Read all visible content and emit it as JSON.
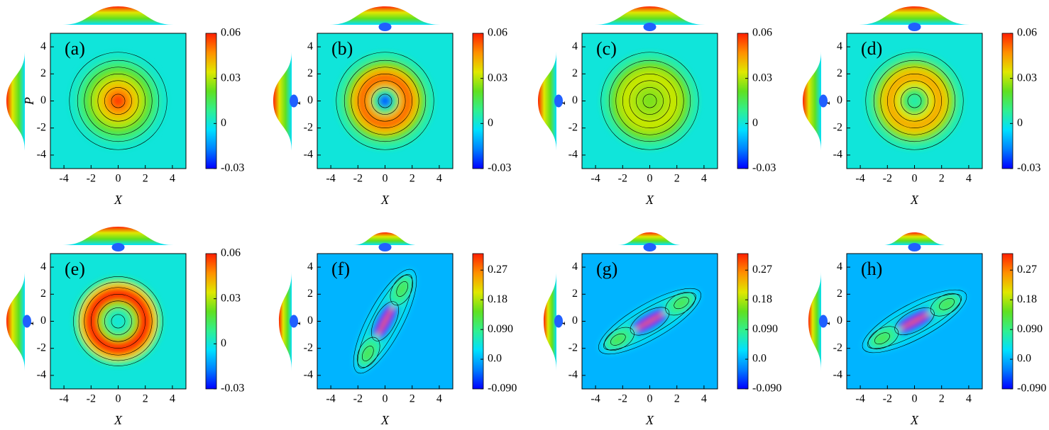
{
  "chart_data": [
    {
      "type": "contour",
      "panel_label": "(a)",
      "x_label": "X",
      "y_label": "P",
      "xlim": [
        -5,
        5
      ],
      "ylim": [
        -5,
        5
      ],
      "xticks": [
        -4,
        -2,
        0,
        2,
        4
      ],
      "yticks": [
        -4,
        -2,
        0,
        2,
        4
      ],
      "colorbar_lim": [
        -0.03,
        0.06
      ],
      "colorbar_ticks": [
        -0.03,
        0,
        0.03,
        0.06
      ],
      "colormap": [
        "#0000ff",
        "#0080ff",
        "#00e0ff",
        "#30f090",
        "#60e020",
        "#e0e800",
        "#ff9000",
        "#ff2000"
      ]
    },
    {
      "type": "contour",
      "panel_label": "(b)",
      "x_label": "X",
      "y_label": "P",
      "xlim": [
        -5,
        5
      ],
      "ylim": [
        -5,
        5
      ],
      "xticks": [
        -4,
        -2,
        0,
        2,
        4
      ],
      "yticks": [
        -4,
        -2,
        0,
        2,
        4
      ],
      "colorbar_lim": [
        -0.03,
        0.06
      ],
      "colorbar_ticks": [
        -0.03,
        0,
        0.03,
        0.06
      ],
      "colormap": [
        "#0000ff",
        "#0080ff",
        "#00e0ff",
        "#30f090",
        "#60e020",
        "#e0e800",
        "#ff9000",
        "#ff2000"
      ]
    },
    {
      "type": "contour",
      "panel_label": "(c)",
      "x_label": "X",
      "y_label": "P",
      "xlim": [
        -5,
        5
      ],
      "ylim": [
        -5,
        5
      ],
      "xticks": [
        -4,
        -2,
        0,
        2,
        4
      ],
      "yticks": [
        -4,
        -2,
        0,
        2,
        4
      ],
      "colorbar_lim": [
        -0.03,
        0.06
      ],
      "colorbar_ticks": [
        -0.03,
        0,
        0.03,
        0.06
      ],
      "colormap": [
        "#0000ff",
        "#0080ff",
        "#00e0ff",
        "#30f090",
        "#60e020",
        "#e0e800",
        "#ff9000",
        "#ff2000"
      ]
    },
    {
      "type": "contour",
      "panel_label": "(d)",
      "x_label": "X",
      "y_label": "P",
      "xlim": [
        -5,
        5
      ],
      "ylim": [
        -5,
        5
      ],
      "xticks": [
        -4,
        -2,
        0,
        2,
        4
      ],
      "yticks": [
        -4,
        -2,
        0,
        2,
        4
      ],
      "colorbar_lim": [
        -0.03,
        0.06
      ],
      "colorbar_ticks": [
        -0.03,
        0,
        0.03,
        0.06
      ],
      "colormap": [
        "#0000ff",
        "#0080ff",
        "#00e0ff",
        "#30f090",
        "#60e020",
        "#e0e800",
        "#ff9000",
        "#ff2000"
      ]
    },
    {
      "type": "contour",
      "panel_label": "(e)",
      "x_label": "X",
      "y_label": "P",
      "xlim": [
        -5,
        5
      ],
      "ylim": [
        -5,
        5
      ],
      "xticks": [
        -4,
        -2,
        0,
        2,
        4
      ],
      "yticks": [
        -4,
        -2,
        0,
        2,
        4
      ],
      "colorbar_lim": [
        -0.03,
        0.06
      ],
      "colorbar_ticks": [
        -0.03,
        0,
        0.03,
        0.06
      ],
      "colormap": [
        "#0000ff",
        "#0080ff",
        "#00e0ff",
        "#30f090",
        "#60e020",
        "#e0e800",
        "#ff9000",
        "#ff2000"
      ]
    },
    {
      "type": "contour",
      "panel_label": "(f)",
      "x_label": "X",
      "y_label": "P",
      "xlim": [
        -5,
        5
      ],
      "ylim": [
        -5,
        5
      ],
      "xticks": [
        -4,
        -2,
        0,
        2,
        4
      ],
      "yticks": [
        -4,
        -2,
        0,
        2,
        4
      ],
      "colorbar_lim": [
        -0.09,
        0.32
      ],
      "colorbar_ticks": [
        {
          "value": -0.09,
          "label": "-0.090"
        },
        {
          "value": 0,
          "label": "0.0"
        },
        {
          "value": 0.09,
          "label": "0.090"
        },
        0.18,
        0.27
      ],
      "colormap": [
        "#0000ff",
        "#0080ff",
        "#00e0ff",
        "#30f090",
        "#60e020",
        "#e0e800",
        "#ff9000",
        "#ff2000"
      ]
    },
    {
      "type": "contour",
      "panel_label": "(g)",
      "x_label": "X",
      "y_label": "P",
      "xlim": [
        -5,
        5
      ],
      "ylim": [
        -5,
        5
      ],
      "xticks": [
        -4,
        -2,
        0,
        2,
        4
      ],
      "yticks": [
        -4,
        -2,
        0,
        2,
        4
      ],
      "colorbar_lim": [
        -0.09,
        0.32
      ],
      "colorbar_ticks": [
        {
          "value": -0.09,
          "label": "-0.090"
        },
        {
          "value": 0,
          "label": "0.0"
        },
        {
          "value": 0.09,
          "label": "0.090"
        },
        0.18,
        0.27
      ],
      "colormap": [
        "#0000ff",
        "#0080ff",
        "#00e0ff",
        "#30f090",
        "#60e020",
        "#e0e800",
        "#ff9000",
        "#ff2000"
      ]
    },
    {
      "type": "contour",
      "panel_label": "(h)",
      "x_label": "X",
      "y_label": "P",
      "xlim": [
        -5,
        5
      ],
      "ylim": [
        -5,
        5
      ],
      "xticks": [
        -4,
        -2,
        0,
        2,
        4
      ],
      "yticks": [
        -4,
        -2,
        0,
        2,
        4
      ],
      "colorbar_lim": [
        -0.09,
        0.32
      ],
      "colorbar_ticks": [
        {
          "value": -0.09,
          "label": "-0.090"
        },
        {
          "value": 0,
          "label": "0.0"
        },
        {
          "value": 0.09,
          "label": "0.090"
        },
        0.18,
        0.27
      ],
      "colormap": [
        "#0000ff",
        "#0080ff",
        "#00e0ff",
        "#30f090",
        "#60e020",
        "#e0e800",
        "#ff9000",
        "#ff2000"
      ]
    }
  ]
}
